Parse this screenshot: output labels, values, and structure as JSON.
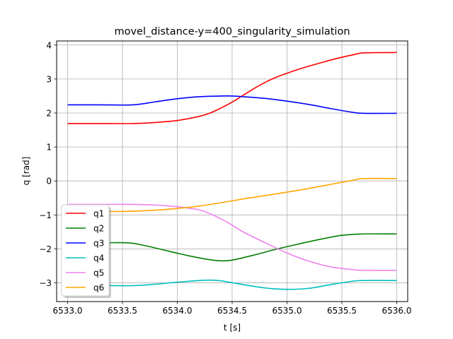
{
  "chart_data": {
    "type": "line",
    "title": "movel_distance-y=400_singularity_simulation",
    "xlabel": "t [s]",
    "ylabel": "q [rad]",
    "xlim": [
      6532.9,
      6536.1
    ],
    "ylim": [
      -3.55,
      4.12
    ],
    "grid": true,
    "legend_position": "lower-left",
    "xticks": [
      6533.0,
      6533.5,
      6534.0,
      6534.5,
      6535.0,
      6535.5,
      6536.0
    ],
    "xtick_labels": [
      "6533.0",
      "6533.5",
      "6534.0",
      "6534.5",
      "6535.0",
      "6535.5",
      "6536.0"
    ],
    "yticks": [
      -3,
      -2,
      -1,
      0,
      1,
      2,
      3,
      4
    ],
    "ytick_labels": [
      "−3",
      "−2",
      "−1",
      "0",
      "1",
      "2",
      "3",
      "4"
    ],
    "series": [
      {
        "name": "q1",
        "color": "#ff0000",
        "x": [
          6533.0,
          6533.3,
          6533.6,
          6533.8,
          6534.0,
          6534.2,
          6534.3,
          6534.4,
          6534.5,
          6534.6,
          6534.7,
          6534.8,
          6534.9,
          6535.0,
          6535.1,
          6535.2,
          6535.3,
          6535.4,
          6535.5,
          6535.6,
          6535.7,
          6536.0
        ],
        "y": [
          1.69,
          1.69,
          1.69,
          1.72,
          1.78,
          1.9,
          2.0,
          2.15,
          2.32,
          2.52,
          2.72,
          2.9,
          3.05,
          3.17,
          3.28,
          3.38,
          3.47,
          3.56,
          3.64,
          3.71,
          3.77,
          3.78
        ]
      },
      {
        "name": "q2",
        "color": "#008000",
        "x": [
          6533.0,
          6533.3,
          6533.55,
          6533.7,
          6533.9,
          6534.1,
          6534.3,
          6534.4,
          6534.5,
          6534.7,
          6534.9,
          6535.1,
          6535.3,
          6535.5,
          6535.7,
          6536.0
        ],
        "y": [
          -1.82,
          -1.82,
          -1.82,
          -1.9,
          -2.05,
          -2.2,
          -2.32,
          -2.35,
          -2.33,
          -2.18,
          -2.01,
          -1.86,
          -1.72,
          -1.6,
          -1.56,
          -1.56
        ]
      },
      {
        "name": "q3",
        "color": "#0000ff",
        "x": [
          6533.0,
          6533.3,
          6533.6,
          6533.8,
          6534.0,
          6534.2,
          6534.4,
          6534.5,
          6534.6,
          6534.8,
          6535.0,
          6535.2,
          6535.4,
          6535.6,
          6535.7,
          6536.0
        ],
        "y": [
          2.24,
          2.24,
          2.24,
          2.33,
          2.42,
          2.48,
          2.5,
          2.5,
          2.48,
          2.43,
          2.35,
          2.25,
          2.13,
          2.02,
          1.99,
          1.99
        ]
      },
      {
        "name": "q4",
        "color": "#00bfbf",
        "x": [
          6533.0,
          6533.3,
          6533.6,
          6533.8,
          6534.0,
          6534.2,
          6534.3,
          6534.4,
          6534.6,
          6534.8,
          6535.0,
          6535.2,
          6535.4,
          6535.6,
          6535.7,
          6536.0
        ],
        "y": [
          -3.08,
          -3.08,
          -3.08,
          -3.04,
          -2.98,
          -2.93,
          -2.92,
          -2.94,
          -3.05,
          -3.15,
          -3.19,
          -3.16,
          -3.05,
          -2.95,
          -2.93,
          -2.93
        ]
      },
      {
        "name": "q5",
        "color": "#ee82ee",
        "x": [
          6533.0,
          6533.3,
          6533.6,
          6533.8,
          6534.0,
          6534.2,
          6534.3,
          6534.4,
          6534.5,
          6534.6,
          6534.8,
          6535.0,
          6535.2,
          6535.4,
          6535.6,
          6535.7,
          6536.0
        ],
        "y": [
          -0.69,
          -0.69,
          -0.69,
          -0.71,
          -0.76,
          -0.85,
          -0.97,
          -1.12,
          -1.3,
          -1.5,
          -1.82,
          -2.12,
          -2.36,
          -2.53,
          -2.61,
          -2.63,
          -2.63
        ]
      },
      {
        "name": "q6",
        "color": "#ffa500",
        "x": [
          6533.0,
          6533.3,
          6533.6,
          6533.8,
          6534.0,
          6534.2,
          6534.4,
          6534.6,
          6534.8,
          6535.0,
          6535.2,
          6535.4,
          6535.6,
          6535.7,
          6536.0
        ],
        "y": [
          -0.9,
          -0.9,
          -0.89,
          -0.86,
          -0.81,
          -0.74,
          -0.64,
          -0.53,
          -0.43,
          -0.33,
          -0.22,
          -0.1,
          0.02,
          0.07,
          0.07
        ]
      }
    ]
  }
}
